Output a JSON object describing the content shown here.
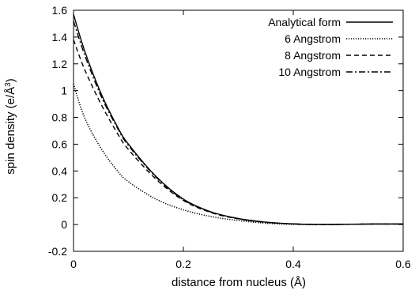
{
  "chart_data": {
    "type": "line",
    "xlabel": "distance from nucleus (Å)",
    "ylabel": "spin density (e/Å^3)",
    "xlim": [
      0,
      0.6
    ],
    "ylim": [
      -0.2,
      1.6
    ],
    "x_ticks": [
      "0",
      "0.2",
      "0.4",
      "0.6"
    ],
    "y_ticks": [
      "-0.2",
      "0",
      "0.2",
      "0.4",
      "0.6",
      "0.8",
      "1",
      "1.2",
      "1.4",
      "1.6"
    ],
    "x_tick_values": [
      0,
      0.2,
      0.4,
      0.6
    ],
    "y_tick_values": [
      -0.2,
      0,
      0.2,
      0.4,
      0.6,
      0.8,
      1,
      1.2,
      1.4,
      1.6
    ],
    "grid": false,
    "legend_position": "top-right",
    "series": [
      {
        "name": "Analytical form",
        "style": "solid",
        "x": [
          0,
          0.02,
          0.05,
          0.08,
          0.1,
          0.15,
          0.2,
          0.25,
          0.3,
          0.35,
          0.4,
          0.45,
          0.5,
          0.55,
          0.6
        ],
        "y": [
          1.57,
          1.3,
          0.98,
          0.73,
          0.6,
          0.36,
          0.19,
          0.095,
          0.045,
          0.018,
          0.005,
          0.0,
          0.002,
          0.004,
          0.004
        ]
      },
      {
        "name": "6 Angstrom",
        "style": "dotted",
        "x": [
          0,
          0.02,
          0.05,
          0.08,
          0.1,
          0.15,
          0.2,
          0.25,
          0.3,
          0.35,
          0.4,
          0.45,
          0.5,
          0.55,
          0.6
        ],
        "y": [
          1.05,
          0.8,
          0.57,
          0.4,
          0.32,
          0.19,
          0.11,
          0.06,
          0.03,
          0.01,
          0.002,
          0.0,
          0.002,
          0.004,
          0.004
        ]
      },
      {
        "name": "8 Angstrom",
        "style": "dashed",
        "x": [
          0,
          0.02,
          0.05,
          0.08,
          0.1,
          0.15,
          0.2,
          0.25,
          0.3,
          0.35,
          0.4,
          0.45,
          0.5,
          0.55,
          0.6
        ],
        "y": [
          1.38,
          1.16,
          0.9,
          0.68,
          0.56,
          0.34,
          0.18,
          0.09,
          0.042,
          0.016,
          0.004,
          0.0,
          0.002,
          0.004,
          0.004
        ]
      },
      {
        "name": "10 Angstrom",
        "style": "dashdot",
        "x": [
          0,
          0.02,
          0.05,
          0.08,
          0.1,
          0.15,
          0.2,
          0.25,
          0.3,
          0.35,
          0.4,
          0.45,
          0.5,
          0.55,
          0.6
        ],
        "y": [
          1.52,
          1.27,
          0.96,
          0.72,
          0.59,
          0.355,
          0.185,
          0.093,
          0.044,
          0.017,
          0.005,
          0.0,
          0.002,
          0.004,
          0.004
        ]
      }
    ]
  }
}
